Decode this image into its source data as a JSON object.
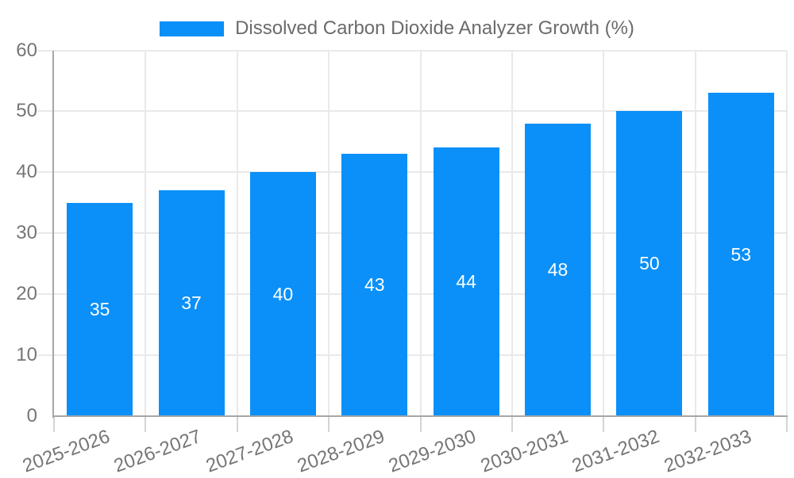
{
  "legend": {
    "label": "Dissolved Carbon Dioxide Analyzer Growth (%)",
    "swatch_color": "#0a90f8"
  },
  "chart_data": {
    "type": "bar",
    "title": "Dissolved Carbon Dioxide Analyzer Growth (%)",
    "categories": [
      "2025-2026",
      "2026-2027",
      "2027-2028",
      "2028-2029",
      "2029-2030",
      "2030-2031",
      "2031-2032",
      "2032-2033"
    ],
    "values": [
      35,
      37,
      40,
      43,
      44,
      48,
      50,
      53
    ],
    "value_labels": [
      "35",
      "37",
      "40",
      "43",
      "44",
      "48",
      "50",
      "53"
    ],
    "xlabel": "",
    "ylabel": "",
    "ylim": [
      0,
      60
    ],
    "yticks": [
      0,
      10,
      20,
      30,
      40,
      50,
      60
    ],
    "grid": true,
    "legend_position": "top",
    "bar_color": "#0a90f8",
    "value_label_color": "#ffffff",
    "axis_label_color": "#757575",
    "gridline_color": "#e9e9e9",
    "axis_line_color": "#a6a6a6",
    "tick_color": "#d4d4d4"
  }
}
